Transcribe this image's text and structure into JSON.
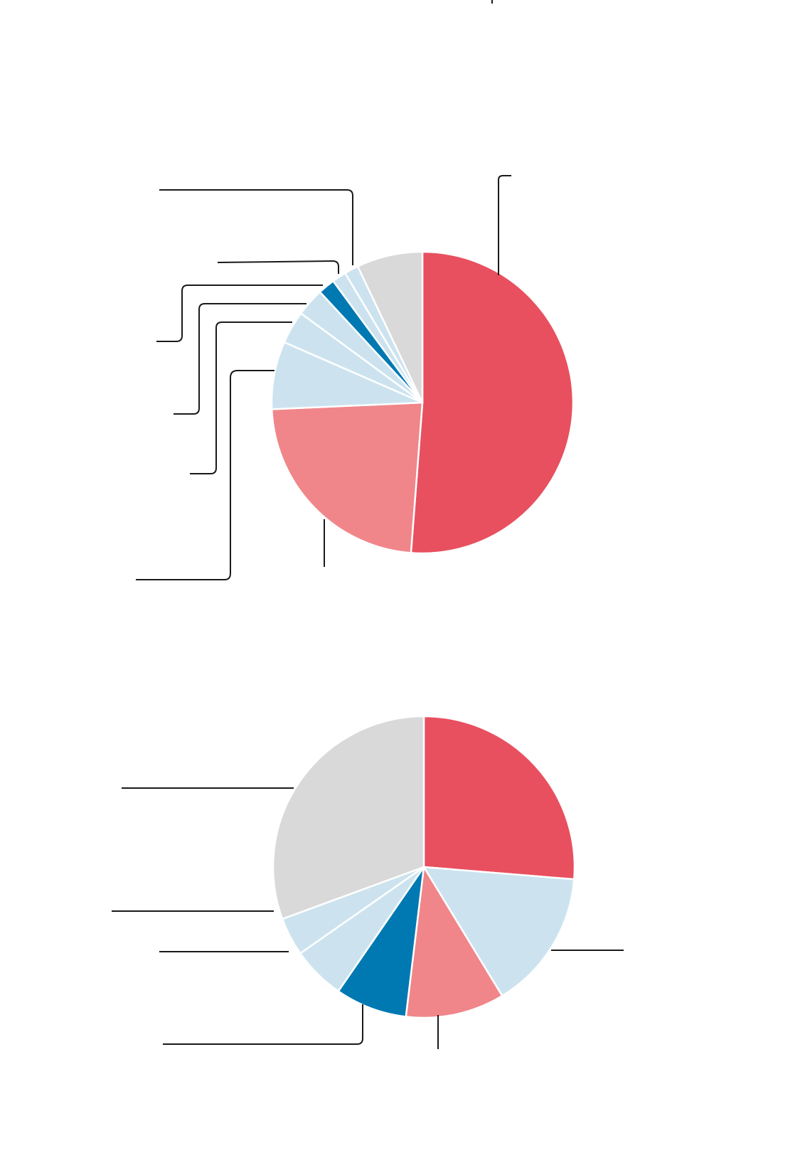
{
  "colors": {
    "red": "#e8505f",
    "pink": "#f0868a",
    "light_blue": "#cce3ef",
    "blue": "#0079b3",
    "gray": "#d9d9d9",
    "leader": "#1a1a1a",
    "background": "#ffffff"
  },
  "chart_data": [
    {
      "type": "pie",
      "start_angle_deg": 0,
      "direction": "clockwise",
      "slices": [
        {
          "value": 50.8,
          "color": "#e8505f"
        },
        {
          "value": 22.9,
          "color": "#f0868a"
        },
        {
          "value": 7.2,
          "color": "#cce3ef"
        },
        {
          "value": 3.5,
          "color": "#cce3ef"
        },
        {
          "value": 3.0,
          "color": "#cce3ef"
        },
        {
          "value": 1.8,
          "color": "#0079b3"
        },
        {
          "value": 1.5,
          "color": "#cce3ef"
        },
        {
          "value": 1.5,
          "color": "#cce3ef"
        },
        {
          "value": 7.0,
          "color": "#d9d9d9"
        }
      ],
      "legend": "none"
    },
    {
      "type": "pie",
      "start_angle_deg": 0,
      "direction": "clockwise",
      "slices": [
        {
          "value": 26.3,
          "color": "#e8505f"
        },
        {
          "value": 15.0,
          "color": "#cce3ef"
        },
        {
          "value": 10.6,
          "color": "#f0868a"
        },
        {
          "value": 7.7,
          "color": "#0079b3"
        },
        {
          "value": 5.7,
          "color": "#cce3ef"
        },
        {
          "value": 4.1,
          "color": "#cce3ef"
        },
        {
          "value": 30.6,
          "color": "#d9d9d9"
        }
      ],
      "legend": "none"
    }
  ]
}
